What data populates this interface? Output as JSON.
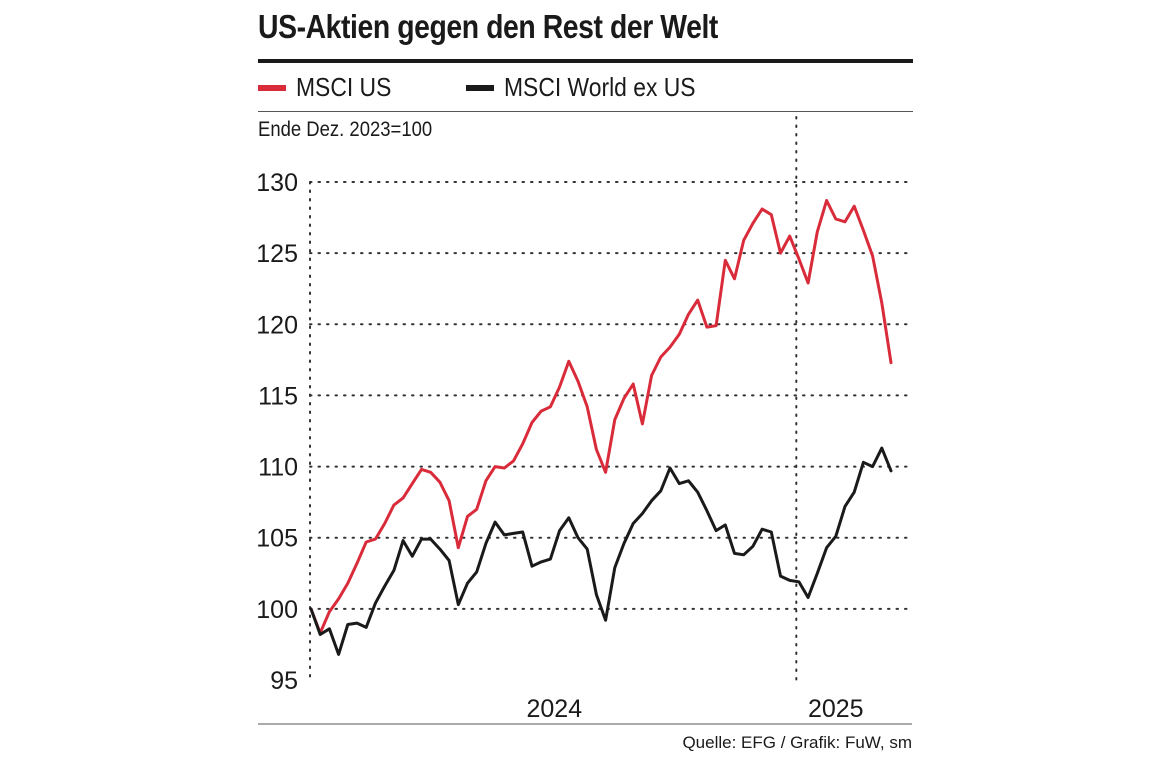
{
  "title": "US-Aktien gegen den Rest der Welt",
  "unit_label": "Ende Dez. 2023=100",
  "source": "Quelle: EFG / Grafik: FuW, sm",
  "chart_data": {
    "type": "line",
    "ylim": [
      95,
      130
    ],
    "yticks": [
      95,
      100,
      105,
      110,
      115,
      120,
      125,
      130
    ],
    "xlim": [
      "2023-12-29",
      "2025-03-14"
    ],
    "xticks": [
      {
        "label": "2024",
        "date": "2024-07-01"
      },
      {
        "label": "2025",
        "date": "2025-01-31"
      }
    ],
    "year_divider": "2025-01-01",
    "grid": "dotted",
    "legend_position": "top",
    "series": [
      {
        "name": "MSCI US",
        "color": "#d92b3a",
        "points": [
          [
            "2023-12-29",
            100.0
          ],
          [
            "2024-01-05",
            98.3
          ],
          [
            "2024-01-12",
            99.8
          ],
          [
            "2024-01-19",
            100.7
          ],
          [
            "2024-01-26",
            101.8
          ],
          [
            "2024-02-02",
            103.2
          ],
          [
            "2024-02-09",
            104.7
          ],
          [
            "2024-02-16",
            104.9
          ],
          [
            "2024-02-23",
            106.0
          ],
          [
            "2024-03-01",
            107.3
          ],
          [
            "2024-03-08",
            107.8
          ],
          [
            "2024-03-15",
            108.8
          ],
          [
            "2024-03-22",
            109.8
          ],
          [
            "2024-03-29",
            109.6
          ],
          [
            "2024-04-05",
            108.9
          ],
          [
            "2024-04-12",
            107.6
          ],
          [
            "2024-04-19",
            104.3
          ],
          [
            "2024-04-26",
            106.5
          ],
          [
            "2024-05-03",
            107.0
          ],
          [
            "2024-05-10",
            109.0
          ],
          [
            "2024-05-17",
            110.0
          ],
          [
            "2024-05-24",
            109.9
          ],
          [
            "2024-05-31",
            110.4
          ],
          [
            "2024-06-07",
            111.6
          ],
          [
            "2024-06-14",
            113.1
          ],
          [
            "2024-06-21",
            113.9
          ],
          [
            "2024-06-28",
            114.2
          ],
          [
            "2024-07-05",
            115.6
          ],
          [
            "2024-07-12",
            117.4
          ],
          [
            "2024-07-19",
            116.0
          ],
          [
            "2024-07-26",
            114.2
          ],
          [
            "2024-08-02",
            111.2
          ],
          [
            "2024-08-09",
            109.6
          ],
          [
            "2024-08-16",
            113.3
          ],
          [
            "2024-08-23",
            114.8
          ],
          [
            "2024-08-30",
            115.8
          ],
          [
            "2024-09-06",
            113.0
          ],
          [
            "2024-09-13",
            116.4
          ],
          [
            "2024-09-20",
            117.7
          ],
          [
            "2024-09-27",
            118.4
          ],
          [
            "2024-10-04",
            119.3
          ],
          [
            "2024-10-11",
            120.7
          ],
          [
            "2024-10-18",
            121.7
          ],
          [
            "2024-10-25",
            119.8
          ],
          [
            "2024-11-01",
            119.9
          ],
          [
            "2024-11-08",
            124.5
          ],
          [
            "2024-11-15",
            123.2
          ],
          [
            "2024-11-22",
            125.9
          ],
          [
            "2024-11-29",
            127.1
          ],
          [
            "2024-12-06",
            128.1
          ],
          [
            "2024-12-13",
            127.7
          ],
          [
            "2024-12-20",
            125.0
          ],
          [
            "2024-12-27",
            126.2
          ],
          [
            "2025-01-03",
            124.6
          ],
          [
            "2025-01-10",
            122.9
          ],
          [
            "2025-01-17",
            126.5
          ],
          [
            "2025-01-24",
            128.7
          ],
          [
            "2025-01-31",
            127.4
          ],
          [
            "2025-02-07",
            127.2
          ],
          [
            "2025-02-14",
            128.3
          ],
          [
            "2025-02-21",
            126.6
          ],
          [
            "2025-02-28",
            124.8
          ],
          [
            "2025-03-07",
            121.5
          ],
          [
            "2025-03-14",
            117.3
          ]
        ]
      },
      {
        "name": "MSCI World ex US",
        "color": "#1a1a1a",
        "points": [
          [
            "2023-12-29",
            100.0
          ],
          [
            "2024-01-05",
            98.2
          ],
          [
            "2024-01-12",
            98.6
          ],
          [
            "2024-01-19",
            96.8
          ],
          [
            "2024-01-26",
            98.9
          ],
          [
            "2024-02-02",
            99.0
          ],
          [
            "2024-02-09",
            98.7
          ],
          [
            "2024-02-16",
            100.4
          ],
          [
            "2024-02-23",
            101.6
          ],
          [
            "2024-03-01",
            102.7
          ],
          [
            "2024-03-08",
            104.8
          ],
          [
            "2024-03-15",
            103.7
          ],
          [
            "2024-03-22",
            104.9
          ],
          [
            "2024-03-29",
            104.9
          ],
          [
            "2024-04-05",
            104.2
          ],
          [
            "2024-04-12",
            103.4
          ],
          [
            "2024-04-19",
            100.3
          ],
          [
            "2024-04-26",
            101.8
          ],
          [
            "2024-05-03",
            102.6
          ],
          [
            "2024-05-10",
            104.6
          ],
          [
            "2024-05-17",
            106.1
          ],
          [
            "2024-05-24",
            105.2
          ],
          [
            "2024-05-31",
            105.3
          ],
          [
            "2024-06-07",
            105.4
          ],
          [
            "2024-06-14",
            103.0
          ],
          [
            "2024-06-21",
            103.3
          ],
          [
            "2024-06-28",
            103.5
          ],
          [
            "2024-07-05",
            105.5
          ],
          [
            "2024-07-12",
            106.4
          ],
          [
            "2024-07-19",
            105.0
          ],
          [
            "2024-07-26",
            104.2
          ],
          [
            "2024-08-02",
            101.0
          ],
          [
            "2024-08-09",
            99.2
          ],
          [
            "2024-08-16",
            102.9
          ],
          [
            "2024-08-23",
            104.6
          ],
          [
            "2024-08-30",
            106.0
          ],
          [
            "2024-09-06",
            106.7
          ],
          [
            "2024-09-13",
            107.6
          ],
          [
            "2024-09-20",
            108.3
          ],
          [
            "2024-09-27",
            109.9
          ],
          [
            "2024-10-04",
            108.8
          ],
          [
            "2024-10-11",
            109.0
          ],
          [
            "2024-10-18",
            108.2
          ],
          [
            "2024-10-25",
            106.9
          ],
          [
            "2024-11-01",
            105.5
          ],
          [
            "2024-11-08",
            105.9
          ],
          [
            "2024-11-15",
            103.9
          ],
          [
            "2024-11-22",
            103.8
          ],
          [
            "2024-11-29",
            104.4
          ],
          [
            "2024-12-06",
            105.6
          ],
          [
            "2024-12-13",
            105.4
          ],
          [
            "2024-12-20",
            102.3
          ],
          [
            "2024-12-27",
            102.0
          ],
          [
            "2025-01-03",
            101.9
          ],
          [
            "2025-01-10",
            100.8
          ],
          [
            "2025-01-17",
            102.5
          ],
          [
            "2025-01-24",
            104.3
          ],
          [
            "2025-01-31",
            105.1
          ],
          [
            "2025-02-07",
            107.2
          ],
          [
            "2025-02-14",
            108.2
          ],
          [
            "2025-02-21",
            110.3
          ],
          [
            "2025-02-28",
            110.0
          ],
          [
            "2025-03-07",
            111.3
          ],
          [
            "2025-03-14",
            109.7
          ]
        ]
      }
    ]
  }
}
